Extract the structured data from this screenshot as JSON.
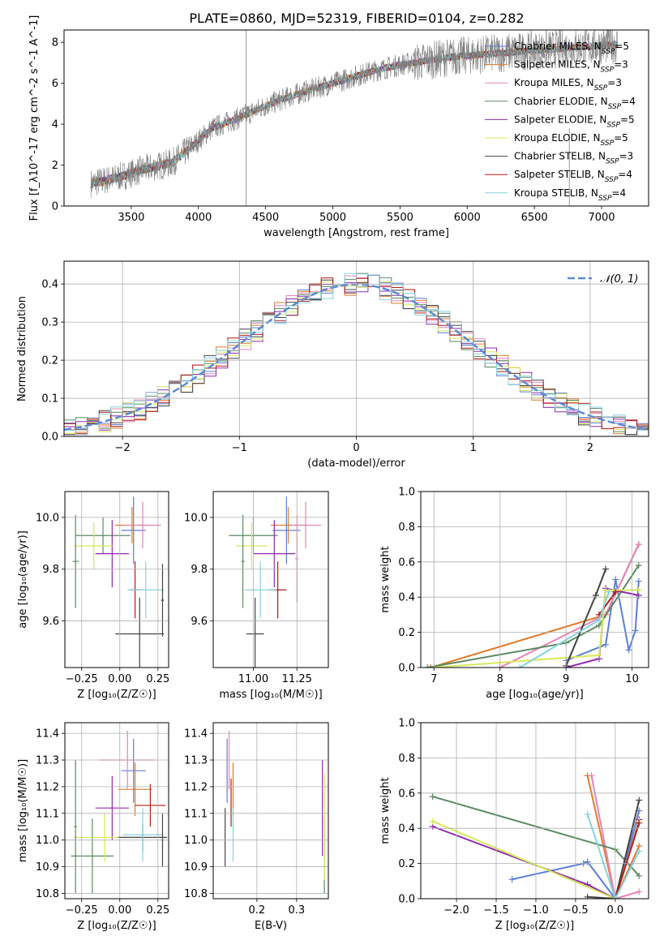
{
  "figure": {
    "title": "PLATE=0860, MJD=52319, FIBERID=0104, z=0.282"
  },
  "colors": {
    "Chabrier MILES": "#5b7fd6",
    "Salpeter MILES": "#e07b2a",
    "Kroupa MILES": "#e783b8",
    "Chabrier ELODIE": "#5a8a62",
    "Salpeter ELODIE": "#8e2bb0",
    "Kroupa ELODIE": "#d8e85a",
    "Chabrier STELIB": "#444444",
    "Salpeter STELIB": "#b31b1b",
    "Kroupa STELIB": "#86d3df",
    "data": "#808080",
    "normal": "#5b8bd6"
  },
  "chart_data": [
    {
      "id": "spectrum",
      "type": "line",
      "xlabel": "wavelength [Angstrom, rest frame]",
      "ylabel": "Flux [f_λ10^-17 erg cm^-2 s^-1 A^-1]",
      "xlim": [
        3000,
        7350
      ],
      "ylim": [
        0,
        8.6
      ],
      "xticks": [
        3500,
        4000,
        4500,
        5000,
        5500,
        6000,
        6500,
        7000
      ],
      "yticks": [
        0,
        2,
        4,
        6,
        8
      ],
      "grid": false,
      "legend_position": "right",
      "continuum": {
        "x": [
          3200,
          3400,
          3600,
          3800,
          3950,
          4100,
          4300,
          4500,
          4700,
          4900,
          5100,
          5300,
          5500,
          5700,
          5900,
          6100,
          6300,
          6500,
          6700,
          6900,
          7100
        ],
        "y": [
          1.1,
          1.4,
          1.8,
          2.1,
          2.9,
          3.8,
          4.3,
          4.9,
          5.4,
          5.8,
          6.2,
          6.6,
          6.9,
          7.1,
          7.3,
          7.4,
          7.5,
          7.6,
          7.7,
          7.8,
          7.9
        ]
      },
      "series": [
        {
          "name": "Chabrier MILES",
          "nssp": "5"
        },
        {
          "name": "Salpeter MILES",
          "nssp": "3"
        },
        {
          "name": "Kroupa MILES",
          "nssp": "3"
        },
        {
          "name": "Chabrier ELODIE",
          "nssp": "4"
        },
        {
          "name": "Salpeter ELODIE",
          "nssp": "5"
        },
        {
          "name": "Kroupa ELODIE",
          "nssp": "5"
        },
        {
          "name": "Chabrier STELIB",
          "nssp": "3"
        },
        {
          "name": "Salpeter STELIB",
          "nssp": "4"
        },
        {
          "name": "Kroupa STELIB",
          "nssp": "4"
        }
      ]
    },
    {
      "id": "residuals",
      "type": "line",
      "xlabel": "(data-model)/error",
      "ylabel": "Normed distribution",
      "xlim": [
        -2.5,
        2.5
      ],
      "ylim": [
        0,
        0.46
      ],
      "xticks": [
        -2,
        -1,
        0,
        1,
        2
      ],
      "xtick_labels": [
        "−2",
        "−1",
        "0",
        "1",
        "2"
      ],
      "yticks": [
        0.0,
        0.1,
        0.2,
        0.3,
        0.4
      ],
      "ytick_labels": [
        "0.0",
        "0.1",
        "0.2",
        "0.3",
        "0.4"
      ],
      "grid": true,
      "legend": "𝒩(0, 1)",
      "legend_position": "top-right",
      "normal": {
        "mean": 0,
        "sigma": 1
      },
      "bin_width": 0.1
    },
    {
      "id": "age-vs-Z",
      "type": "scatter",
      "xlabel": "Z [log₁₀(Z/Z☉)]",
      "ylabel": "age  [log₁₀(age/yr)]",
      "xlim": [
        -0.36,
        0.32
      ],
      "ylim": [
        9.42,
        10.1
      ],
      "xticks": [
        -0.25,
        0.0,
        0.25
      ],
      "xtick_labels": [
        "−0.25",
        "0.00",
        "0.25"
      ],
      "yticks": [
        9.6,
        9.8,
        10.0
      ],
      "ytick_labels": [
        "9.6",
        "9.8",
        "10.0"
      ],
      "grid": true,
      "points": [
        {
          "series": "Chabrier MILES",
          "x": 0.09,
          "xerr": 0.08,
          "y": 9.95,
          "yerr": 0.13
        },
        {
          "series": "Salpeter MILES",
          "x": 0.08,
          "xerr": 0.11,
          "y": 9.97,
          "yerr": 0.07
        },
        {
          "series": "Kroupa MILES",
          "x": 0.15,
          "xerr": 0.12,
          "y": 9.97,
          "yerr": 0.09
        },
        {
          "series": "Chabrier ELODIE",
          "x": -0.11,
          "xerr": 0.18,
          "y": 9.93,
          "yerr": 0.07
        },
        {
          "series": "Salpeter ELODIE",
          "x": -0.05,
          "xerr": 0.11,
          "y": 9.86,
          "yerr": 0.13
        },
        {
          "series": "Kroupa ELODIE",
          "x": -0.17,
          "xerr": 0.13,
          "y": 9.89,
          "yerr": 0.09
        },
        {
          "series": "Chabrier STELIB",
          "x": 0.13,
          "xerr": 0.16,
          "y": 9.55,
          "yerr": 0.14
        },
        {
          "series": "Salpeter STELIB",
          "x": 0.1,
          "xerr": 0.04,
          "y": 9.72,
          "yerr": 0.11
        },
        {
          "series": "Kroupa STELIB",
          "x": 0.17,
          "xerr": 0.12,
          "y": 9.72,
          "yerr": 0.11
        },
        {
          "series": "Chabrier ELODIE",
          "x": -0.29,
          "xerr": 0.02,
          "y": 9.83,
          "yerr": 0.18
        },
        {
          "series": "Chabrier STELIB",
          "x": 0.28,
          "xerr": 0.01,
          "y": 9.68,
          "yerr": 0.14
        }
      ]
    },
    {
      "id": "age-vs-mass",
      "type": "scatter",
      "xlabel": "mass [log₁₀(M/M☉)]",
      "ylabel": "",
      "xlim": [
        10.77,
        11.43
      ],
      "ylim": [
        9.42,
        10.1
      ],
      "xticks": [
        11.0,
        11.25
      ],
      "xtick_labels": [
        "11.00",
        "11.25"
      ],
      "yticks": [
        9.6,
        9.8,
        10.0
      ],
      "ytick_labels": [
        "9.6",
        "9.8",
        "10.0"
      ],
      "grid": true,
      "points": [
        {
          "series": "Chabrier MILES",
          "x": 11.19,
          "xerr": 0.08,
          "y": 9.95,
          "yerr": 0.13
        },
        {
          "series": "Salpeter MILES",
          "x": 11.2,
          "xerr": 0.1,
          "y": 9.97,
          "yerr": 0.07
        },
        {
          "series": "Kroupa MILES",
          "x": 11.3,
          "xerr": 0.09,
          "y": 9.97,
          "yerr": 0.09
        },
        {
          "series": "Chabrier ELODIE",
          "x": 11.0,
          "xerr": 0.14,
          "y": 9.93,
          "yerr": 0.07
        },
        {
          "series": "Salpeter ELODIE",
          "x": 11.12,
          "xerr": 0.12,
          "y": 9.86,
          "yerr": 0.13
        },
        {
          "series": "Kroupa ELODIE",
          "x": 10.99,
          "xerr": 0.09,
          "y": 9.89,
          "yerr": 0.09
        },
        {
          "series": "Chabrier STELIB",
          "x": 11.01,
          "xerr": 0.05,
          "y": 9.55,
          "yerr": 0.14
        },
        {
          "series": "Salpeter STELIB",
          "x": 11.14,
          "xerr": 0.05,
          "y": 9.72,
          "yerr": 0.11
        },
        {
          "series": "Kroupa STELIB",
          "x": 11.04,
          "xerr": 0.09,
          "y": 9.72,
          "yerr": 0.11
        },
        {
          "series": "Chabrier ELODIE",
          "x": 10.94,
          "xerr": 0.01,
          "y": 9.83,
          "yerr": 0.18
        },
        {
          "series": "Kroupa MILES",
          "x": 11.25,
          "xerr": 0.01,
          "y": 9.84,
          "yerr": 0.17
        }
      ]
    },
    {
      "id": "mass-weight-vs-age",
      "type": "line",
      "xlabel": "age  [log₁₀(age/yr)]",
      "ylabel": "mass weight",
      "xlim": [
        6.8,
        10.25
      ],
      "ylim": [
        0,
        1.0
      ],
      "xticks": [
        7,
        8,
        9,
        10
      ],
      "yticks": [
        0.0,
        0.2,
        0.4,
        0.6,
        0.8,
        1.0
      ],
      "ytick_labels": [
        "0.0",
        "0.2",
        "0.4",
        "0.6",
        "0.8",
        "1.0"
      ],
      "grid": true,
      "series": [
        {
          "name": "Chabrier MILES",
          "x": [
            9.0,
            9.6,
            9.75,
            9.95,
            10.05,
            10.1
          ],
          "y": [
            0.04,
            0.13,
            0.5,
            0.1,
            0.21,
            0.49
          ]
        },
        {
          "name": "Salpeter MILES",
          "x": [
            6.95,
            9.6,
            10.1
          ],
          "y": [
            0.0,
            0.3,
            0.7
          ]
        },
        {
          "name": "Kroupa MILES",
          "x": [
            8.0,
            9.6,
            10.1
          ],
          "y": [
            0.0,
            0.3,
            0.7
          ]
        },
        {
          "name": "Chabrier ELODIE",
          "x": [
            6.9,
            9.0,
            9.5,
            10.1
          ],
          "y": [
            0.0,
            0.14,
            0.24,
            0.58
          ]
        },
        {
          "name": "Salpeter ELODIE",
          "x": [
            9.0,
            9.5,
            9.6,
            10.1
          ],
          "y": [
            0.0,
            0.05,
            0.45,
            0.41
          ]
        },
        {
          "name": "Kroupa ELODIE",
          "x": [
            7.0,
            9.5,
            9.6,
            10.1
          ],
          "y": [
            0.0,
            0.07,
            0.44,
            0.44
          ]
        },
        {
          "name": "Chabrier STELIB",
          "x": [
            9.0,
            9.45,
            9.6
          ],
          "y": [
            0.01,
            0.41,
            0.56
          ]
        },
        {
          "name": "Salpeter STELIB",
          "x": [
            9.5,
            9.75
          ],
          "y": [
            0.3,
            0.43
          ]
        },
        {
          "name": "Kroupa STELIB",
          "x": [
            8.3,
            9.5,
            9.65
          ],
          "y": [
            0.0,
            0.27,
            0.43
          ]
        }
      ]
    },
    {
      "id": "mass-vs-Z",
      "type": "scatter",
      "xlabel": "Z [log₁₀(Z/Z☉)]",
      "ylabel": "mass [log₁₀(M/M☉)]",
      "xlim": [
        -0.36,
        0.32
      ],
      "ylim": [
        10.78,
        11.44
      ],
      "xticks": [
        -0.25,
        0.0,
        0.25
      ],
      "xtick_labels": [
        "−0.25",
        "0.00",
        "0.25"
      ],
      "yticks": [
        10.8,
        10.9,
        11.0,
        11.1,
        11.2,
        11.3,
        11.4
      ],
      "ytick_labels": [
        "10.8",
        "10.9",
        "11.0",
        "11.1",
        "11.2",
        "11.3",
        "11.4"
      ],
      "grid": true,
      "points": [
        {
          "series": "Chabrier MILES",
          "x": 0.09,
          "xerr": 0.08,
          "y": 11.26,
          "yerr": 0.12
        },
        {
          "series": "Salpeter MILES",
          "x": 0.1,
          "xerr": 0.11,
          "y": 11.19,
          "yerr": 0.1
        },
        {
          "series": "Kroupa MILES",
          "x": 0.05,
          "xerr": 0.18,
          "y": 11.3,
          "yerr": 0.11
        },
        {
          "series": "Chabrier ELODIE",
          "x": -0.18,
          "xerr": 0.14,
          "y": 10.94,
          "yerr": 0.14
        },
        {
          "series": "Salpeter ELODIE",
          "x": -0.05,
          "xerr": 0.11,
          "y": 11.12,
          "yerr": 0.12
        },
        {
          "series": "Kroupa ELODIE",
          "x": -0.1,
          "xerr": 0.2,
          "y": 11.01,
          "yerr": 0.09
        },
        {
          "series": "Chabrier STELIB",
          "x": 0.15,
          "xerr": 0.16,
          "y": 11.01,
          "yerr": 0.05
        },
        {
          "series": "Salpeter STELIB",
          "x": 0.2,
          "xerr": 0.1,
          "y": 11.13,
          "yerr": 0.08
        },
        {
          "series": "Kroupa STELIB",
          "x": 0.15,
          "xerr": 0.13,
          "y": 11.02,
          "yerr": 0.1
        },
        {
          "series": "Chabrier ELODIE",
          "x": -0.29,
          "xerr": 0.01,
          "y": 11.05,
          "yerr": 0.25
        },
        {
          "series": "Chabrier STELIB",
          "x": 0.28,
          "xerr": 0.01,
          "y": 11.0,
          "yerr": 0.1
        }
      ]
    },
    {
      "id": "mass-vs-EBV",
      "type": "scatter",
      "xlabel": "E(B-V)",
      "ylabel": "",
      "xlim": [
        0.09,
        0.38
      ],
      "ylim": [
        10.78,
        11.44
      ],
      "xticks": [
        0.2,
        0.3
      ],
      "xtick_labels": [
        "0.2",
        "0.3"
      ],
      "yticks": [
        10.8,
        10.9,
        11.0,
        11.1,
        11.2,
        11.3,
        11.4
      ],
      "ytick_labels": [
        "10.8",
        "10.9",
        "11.0",
        "11.1",
        "11.2",
        "11.3",
        "11.4"
      ],
      "grid": true,
      "points": [
        {
          "series": "Chabrier MILES",
          "x": 0.125,
          "xerr": 0,
          "y": 11.26,
          "yerr": 0.12
        },
        {
          "series": "Salpeter MILES",
          "x": 0.14,
          "xerr": 0,
          "y": 11.19,
          "yerr": 0.1
        },
        {
          "series": "Kroupa MILES",
          "x": 0.13,
          "xerr": 0,
          "y": 11.3,
          "yerr": 0.11
        },
        {
          "series": "Chabrier ELODIE",
          "x": 0.37,
          "xerr": 0,
          "y": 10.94,
          "yerr": 0.14
        },
        {
          "series": "Salpeter ELODIE",
          "x": 0.365,
          "xerr": 0,
          "y": 11.12,
          "yerr": 0.18
        },
        {
          "series": "Kroupa ELODIE",
          "x": 0.37,
          "xerr": 0,
          "y": 11.05,
          "yerr": 0.2
        },
        {
          "series": "Chabrier STELIB",
          "x": 0.12,
          "xerr": 0,
          "y": 11.01,
          "yerr": 0.11
        },
        {
          "series": "Salpeter STELIB",
          "x": 0.135,
          "xerr": 0,
          "y": 11.14,
          "yerr": 0.09
        },
        {
          "series": "Kroupa STELIB",
          "x": 0.14,
          "xerr": 0,
          "y": 11.02,
          "yerr": 0.1
        }
      ]
    },
    {
      "id": "mass-weight-vs-Z",
      "type": "line",
      "xlabel": "Z [log₁₀(Z/Z☉)]",
      "ylabel": "mass weight",
      "xlim": [
        -2.45,
        0.42
      ],
      "ylim": [
        0,
        1.0
      ],
      "xticks": [
        -2.0,
        -1.5,
        -1.0,
        -0.5,
        0.0
      ],
      "xtick_labels": [
        "−2.0",
        "−1.5",
        "−1.0",
        "−0.5",
        "0.0"
      ],
      "yticks": [
        0.0,
        0.2,
        0.4,
        0.6,
        0.8,
        1.0
      ],
      "ytick_labels": [
        "0.0",
        "0.2",
        "0.4",
        "0.6",
        "0.8",
        "1.0"
      ],
      "grid": true,
      "series": [
        {
          "name": "Chabrier MILES",
          "x": [
            -1.3,
            -0.4,
            -0.35,
            0.0,
            0.3
          ],
          "y": [
            0.11,
            0.2,
            0.21,
            0.0,
            0.5
          ]
        },
        {
          "name": "Salpeter MILES",
          "x": [
            -0.35,
            0.0,
            0.3
          ],
          "y": [
            0.7,
            0.0,
            0.3
          ]
        },
        {
          "name": "Kroupa MILES",
          "x": [
            -0.3,
            0.0,
            0.3
          ],
          "y": [
            0.7,
            0.0,
            0.04
          ]
        },
        {
          "name": "Chabrier ELODIE",
          "x": [
            -2.3,
            0.0,
            0.3
          ],
          "y": [
            0.58,
            0.28,
            0.13
          ]
        },
        {
          "name": "Salpeter ELODIE",
          "x": [
            -2.3,
            -0.35,
            0.0,
            0.3
          ],
          "y": [
            0.41,
            0.08,
            0.0,
            0.45
          ]
        },
        {
          "name": "Kroupa ELODIE",
          "x": [
            -2.3,
            0.0,
            0.3
          ],
          "y": [
            0.44,
            0.0,
            0.44
          ]
        },
        {
          "name": "Chabrier STELIB",
          "x": [
            -0.35,
            0.0,
            0.3
          ],
          "y": [
            0.01,
            0.0,
            0.56
          ]
        },
        {
          "name": "Salpeter STELIB",
          "x": [
            0.0,
            0.3
          ],
          "y": [
            0.0,
            0.43
          ]
        },
        {
          "name": "Kroupa STELIB",
          "x": [
            -0.35,
            0.0,
            0.3
          ],
          "y": [
            0.48,
            0.0,
            0.27
          ]
        }
      ]
    }
  ]
}
